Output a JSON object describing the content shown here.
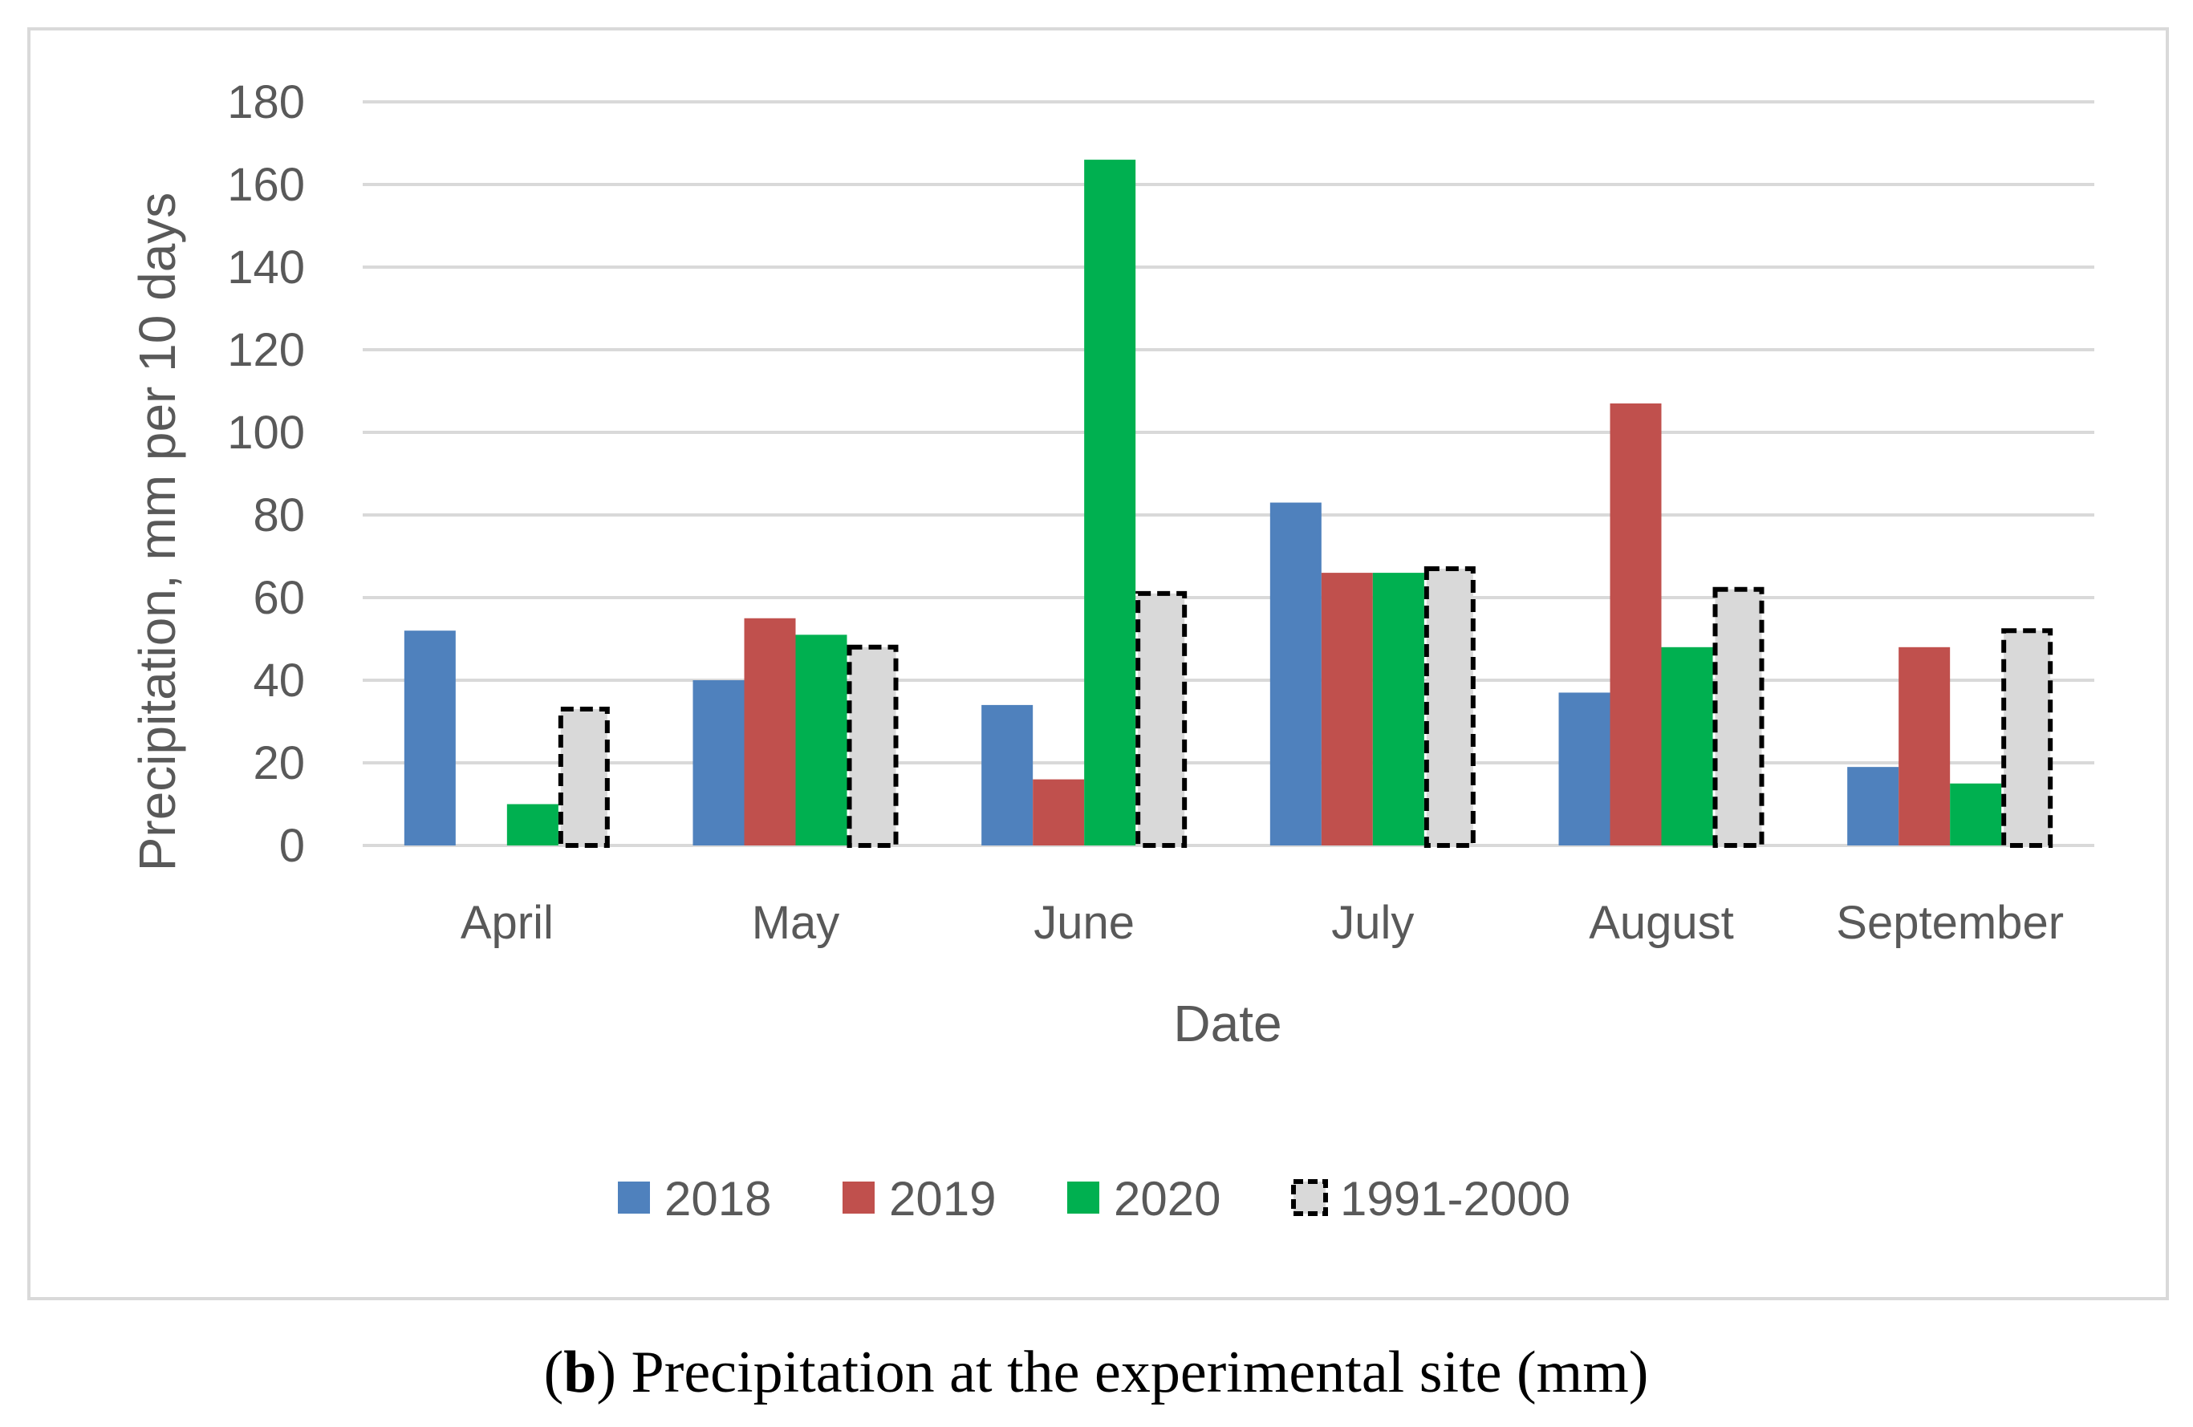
{
  "chart_data": {
    "type": "bar",
    "title": "",
    "xlabel": "Date",
    "ylabel": "Precipitation, mm per 10 days",
    "ylim": [
      0,
      180
    ],
    "yticks": [
      0,
      20,
      40,
      60,
      80,
      100,
      120,
      140,
      160,
      180
    ],
    "grid": true,
    "legend_position": "bottom",
    "categories": [
      "April",
      "May",
      "June",
      "July",
      "August",
      "September"
    ],
    "series": [
      {
        "name": "2018",
        "values": [
          52,
          40,
          34,
          83,
          37,
          19
        ],
        "color": "#4F81BD",
        "style": "solid"
      },
      {
        "name": "2019",
        "values": [
          0,
          55,
          16,
          66,
          107,
          48
        ],
        "color": "#C0504D",
        "style": "solid"
      },
      {
        "name": "2020",
        "values": [
          10,
          51,
          166,
          66,
          48,
          15
        ],
        "color": "#00B050",
        "style": "solid"
      },
      {
        "name": "1991-2000",
        "values": [
          33,
          48,
          61,
          67,
          62,
          52
        ],
        "color": "#D9D9D9",
        "style": "dashed-outline"
      }
    ]
  },
  "caption": {
    "open_paren": "(",
    "letter": "b",
    "rest": ") Precipitation at the experimental site (mm)"
  },
  "colors": {
    "grid": "#D9D9D9",
    "frame": "#D9D9D9",
    "text": "#595959",
    "outline": "#000000"
  }
}
